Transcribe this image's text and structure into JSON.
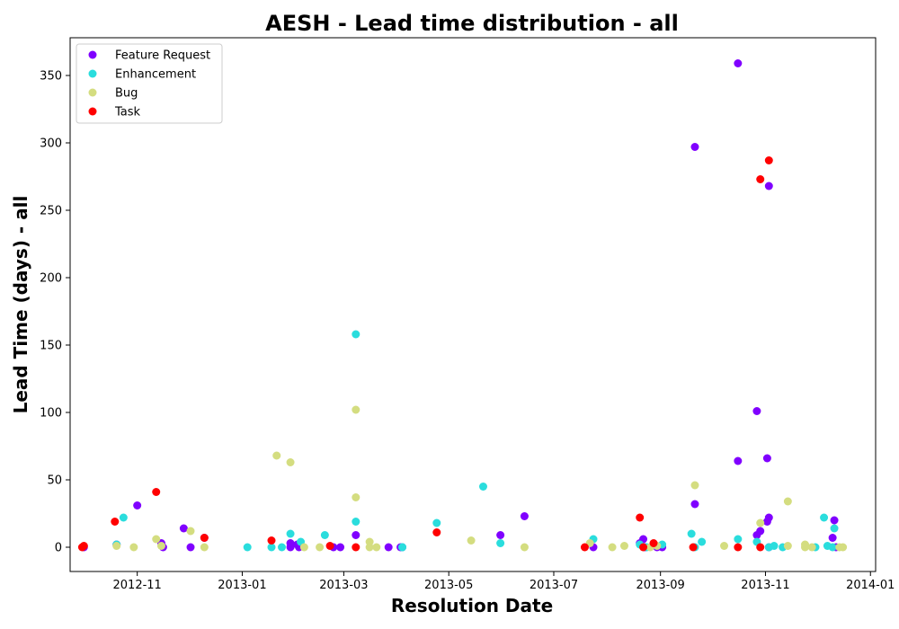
{
  "chart_data": {
    "type": "scatter",
    "title": "AESH - Lead time distribution - all",
    "xlabel": "Resolution Date",
    "ylabel": "Lead Time (days) - all",
    "xlim": [
      "2012-09-23",
      "2014-01-04"
    ],
    "ylim": [
      -18,
      378
    ],
    "x_ticks": [
      "2012-11",
      "2013-01",
      "2013-03",
      "2013-05",
      "2013-07",
      "2013-09",
      "2013-11",
      "2014-01"
    ],
    "y_ticks": [
      0,
      50,
      100,
      150,
      200,
      250,
      300,
      350
    ],
    "grid": false,
    "legend_position": "top-left",
    "series": [
      {
        "name": "Feature Request",
        "color": "#8000ff",
        "points": [
          {
            "x": "2012-10-01",
            "y": 0
          },
          {
            "x": "2012-10-20",
            "y": 2
          },
          {
            "x": "2012-11-01",
            "y": 31
          },
          {
            "x": "2012-11-16",
            "y": 0
          },
          {
            "x": "2012-11-15",
            "y": 3
          },
          {
            "x": "2012-11-28",
            "y": 14
          },
          {
            "x": "2012-12-02",
            "y": 0
          },
          {
            "x": "2012-12-10",
            "y": 7
          },
          {
            "x": "2013-01-29",
            "y": 3
          },
          {
            "x": "2013-01-29",
            "y": 0
          },
          {
            "x": "2013-02-02",
            "y": 2
          },
          {
            "x": "2013-02-03",
            "y": 0
          },
          {
            "x": "2013-02-23",
            "y": 0
          },
          {
            "x": "2013-02-27",
            "y": 0
          },
          {
            "x": "2013-03-08",
            "y": 9
          },
          {
            "x": "2013-03-27",
            "y": 0
          },
          {
            "x": "2013-04-03",
            "y": 0
          },
          {
            "x": "2013-04-04",
            "y": 0
          },
          {
            "x": "2013-05-31",
            "y": 9
          },
          {
            "x": "2013-06-14",
            "y": 23
          },
          {
            "x": "2013-07-24",
            "y": 0
          },
          {
            "x": "2013-08-20",
            "y": 3
          },
          {
            "x": "2013-08-22",
            "y": 6
          },
          {
            "x": "2013-08-23",
            "y": 0
          },
          {
            "x": "2013-08-30",
            "y": 0
          },
          {
            "x": "2013-09-02",
            "y": 0
          },
          {
            "x": "2013-09-21",
            "y": 297
          },
          {
            "x": "2013-09-21",
            "y": 32
          },
          {
            "x": "2013-10-16",
            "y": 359
          },
          {
            "x": "2013-10-16",
            "y": 64
          },
          {
            "x": "2013-10-27",
            "y": 101
          },
          {
            "x": "2013-10-27",
            "y": 9
          },
          {
            "x": "2013-10-29",
            "y": 12
          },
          {
            "x": "2013-11-03",
            "y": 268
          },
          {
            "x": "2013-11-02",
            "y": 66
          },
          {
            "x": "2013-11-03",
            "y": 22
          },
          {
            "x": "2013-11-02",
            "y": 19
          },
          {
            "x": "2013-11-03",
            "y": 0
          },
          {
            "x": "2013-12-11",
            "y": 20
          },
          {
            "x": "2013-12-10",
            "y": 7
          },
          {
            "x": "2013-12-12",
            "y": 0
          }
        ]
      },
      {
        "name": "Enhancement",
        "color": "#2adddd",
        "points": [
          {
            "x": "2012-10-20",
            "y": 2
          },
          {
            "x": "2012-10-24",
            "y": 22
          },
          {
            "x": "2013-01-04",
            "y": 0
          },
          {
            "x": "2013-01-18",
            "y": 0
          },
          {
            "x": "2013-01-24",
            "y": 0
          },
          {
            "x": "2013-01-29",
            "y": 10
          },
          {
            "x": "2013-02-04",
            "y": 4
          },
          {
            "x": "2013-02-18",
            "y": 9
          },
          {
            "x": "2013-03-08",
            "y": 158
          },
          {
            "x": "2013-03-08",
            "y": 19
          },
          {
            "x": "2013-04-04",
            "y": 0
          },
          {
            "x": "2013-04-04",
            "y": 0
          },
          {
            "x": "2013-04-24",
            "y": 18
          },
          {
            "x": "2013-05-21",
            "y": 45
          },
          {
            "x": "2013-05-31",
            "y": 3
          },
          {
            "x": "2013-07-24",
            "y": 6
          },
          {
            "x": "2013-08-20",
            "y": 2
          },
          {
            "x": "2013-08-24",
            "y": 0
          },
          {
            "x": "2013-09-02",
            "y": 2
          },
          {
            "x": "2013-09-19",
            "y": 10
          },
          {
            "x": "2013-09-21",
            "y": 0
          },
          {
            "x": "2013-09-25",
            "y": 4
          },
          {
            "x": "2013-10-16",
            "y": 6
          },
          {
            "x": "2013-10-27",
            "y": 4
          },
          {
            "x": "2013-11-03",
            "y": 0
          },
          {
            "x": "2013-11-06",
            "y": 1
          },
          {
            "x": "2013-11-11",
            "y": 0
          },
          {
            "x": "2013-11-30",
            "y": 0
          },
          {
            "x": "2013-12-05",
            "y": 22
          },
          {
            "x": "2013-12-07",
            "y": 1
          },
          {
            "x": "2013-12-11",
            "y": 14
          },
          {
            "x": "2013-12-10",
            "y": 0
          }
        ]
      },
      {
        "name": "Bug",
        "color": "#d4dd80",
        "points": [
          {
            "x": "2012-10-20",
            "y": 1
          },
          {
            "x": "2012-10-30",
            "y": 0
          },
          {
            "x": "2012-11-12",
            "y": 6
          },
          {
            "x": "2012-11-15",
            "y": 1
          },
          {
            "x": "2012-12-02",
            "y": 12
          },
          {
            "x": "2012-12-10",
            "y": 0
          },
          {
            "x": "2013-01-21",
            "y": 68
          },
          {
            "x": "2013-01-29",
            "y": 63
          },
          {
            "x": "2013-02-06",
            "y": 0
          },
          {
            "x": "2013-02-15",
            "y": 0
          },
          {
            "x": "2013-03-08",
            "y": 102
          },
          {
            "x": "2013-03-08",
            "y": 37
          },
          {
            "x": "2013-03-16",
            "y": 4
          },
          {
            "x": "2013-03-16",
            "y": 0
          },
          {
            "x": "2013-03-20",
            "y": 0
          },
          {
            "x": "2013-05-14",
            "y": 5
          },
          {
            "x": "2013-06-14",
            "y": 0
          },
          {
            "x": "2013-07-22",
            "y": 3
          },
          {
            "x": "2013-08-04",
            "y": 0
          },
          {
            "x": "2013-08-11",
            "y": 1
          },
          {
            "x": "2013-08-26",
            "y": 0
          },
          {
            "x": "2013-08-30",
            "y": 1
          },
          {
            "x": "2013-09-21",
            "y": 46
          },
          {
            "x": "2013-10-08",
            "y": 1
          },
          {
            "x": "2013-10-29",
            "y": 18
          },
          {
            "x": "2013-11-14",
            "y": 34
          },
          {
            "x": "2013-11-14",
            "y": 1
          },
          {
            "x": "2013-11-24",
            "y": 2
          },
          {
            "x": "2013-11-24",
            "y": 0
          },
          {
            "x": "2013-11-28",
            "y": 0
          },
          {
            "x": "2013-12-14",
            "y": 0
          },
          {
            "x": "2013-12-16",
            "y": 0
          }
        ]
      },
      {
        "name": "Task",
        "color": "#ff0000",
        "points": [
          {
            "x": "2012-09-30",
            "y": 0
          },
          {
            "x": "2012-10-01",
            "y": 1
          },
          {
            "x": "2012-10-19",
            "y": 19
          },
          {
            "x": "2012-11-12",
            "y": 41
          },
          {
            "x": "2012-12-10",
            "y": 7
          },
          {
            "x": "2013-01-18",
            "y": 5
          },
          {
            "x": "2013-02-21",
            "y": 1
          },
          {
            "x": "2013-03-08",
            "y": 0
          },
          {
            "x": "2013-04-24",
            "y": 11
          },
          {
            "x": "2013-07-19",
            "y": 0
          },
          {
            "x": "2013-08-20",
            "y": 22
          },
          {
            "x": "2013-08-22",
            "y": 0
          },
          {
            "x": "2013-08-28",
            "y": 3
          },
          {
            "x": "2013-09-20",
            "y": 0
          },
          {
            "x": "2013-10-16",
            "y": 0
          },
          {
            "x": "2013-10-29",
            "y": 273
          },
          {
            "x": "2013-10-29",
            "y": 0
          },
          {
            "x": "2013-11-03",
            "y": 287
          }
        ]
      }
    ]
  }
}
